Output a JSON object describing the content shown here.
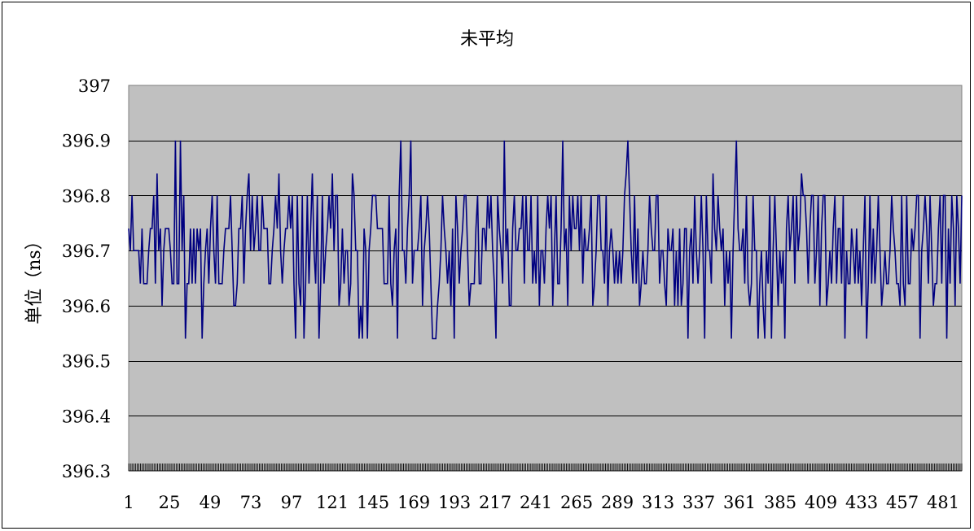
{
  "chart_data": {
    "type": "line",
    "title": "未平均",
    "xlabel": "",
    "ylabel": "单位（ns）",
    "ylim": [
      396.3,
      397
    ],
    "yticks": [
      "396.3",
      "396.4",
      "396.5",
      "396.6",
      "396.7",
      "396.8",
      "396.9",
      "397"
    ],
    "xticks": [
      "1",
      "25",
      "49",
      "73",
      "97",
      "121",
      "145",
      "169",
      "193",
      "217",
      "241",
      "265",
      "289",
      "313",
      "337",
      "361",
      "385",
      "409",
      "433",
      "457",
      "481"
    ],
    "x_range": [
      1,
      492
    ],
    "grid": true,
    "legend": "none",
    "colors": {
      "plot_background": "#c0c0c0",
      "line": "#000080",
      "gridline": "#000000"
    },
    "series": [
      {
        "values": [
          396.74,
          396.7,
          396.8,
          396.7,
          396.7,
          396.7,
          396.7,
          396.64,
          396.74,
          396.64,
          396.64,
          396.64,
          396.7,
          396.74,
          396.74,
          396.8,
          396.64,
          396.84,
          396.7,
          396.74,
          396.6,
          396.7,
          396.74,
          396.74,
          396.74,
          396.7,
          396.64,
          396.64,
          396.9,
          396.64,
          396.64,
          396.9,
          396.7,
          396.8,
          396.54,
          396.64,
          396.64,
          396.74,
          396.64,
          396.74,
          396.64,
          396.74,
          396.7,
          396.74,
          396.54,
          396.64,
          396.7,
          396.74,
          396.64,
          396.74,
          396.8,
          396.7,
          396.64,
          396.8,
          396.64,
          396.64,
          396.64,
          396.7,
          396.74,
          396.74,
          396.74,
          396.8,
          396.7,
          396.6,
          396.6,
          396.64,
          396.74,
          396.74,
          396.8,
          396.64,
          396.74,
          396.8,
          396.84,
          396.7,
          396.8,
          396.7,
          396.74,
          396.8,
          396.7,
          396.7,
          396.8,
          396.74,
          396.74,
          396.74,
          396.64,
          396.64,
          396.7,
          396.74,
          396.8,
          396.74,
          396.84,
          396.7,
          396.64,
          396.7,
          396.74,
          396.74,
          396.8,
          396.74,
          396.8,
          396.64,
          396.54,
          396.8,
          396.64,
          396.6,
          396.8,
          396.54,
          396.64,
          396.8,
          396.64,
          396.74,
          396.84,
          396.7,
          396.64,
          396.8,
          396.54,
          396.64,
          396.8,
          396.64,
          396.7,
          396.74,
          396.8,
          396.74,
          396.84,
          396.7,
          396.8,
          396.8,
          396.6,
          396.64,
          396.74,
          396.64,
          396.7,
          396.7,
          396.6,
          396.64,
          396.84,
          396.8,
          396.7,
          396.7,
          396.54,
          396.6,
          396.54,
          396.74,
          396.7,
          396.54,
          396.7,
          396.74,
          396.8,
          396.8,
          396.8,
          396.74,
          396.74,
          396.74,
          396.74,
          396.64,
          396.64,
          396.64,
          396.8,
          396.64,
          396.6,
          396.7,
          396.74,
          396.54,
          396.8,
          396.9,
          396.7,
          396.7,
          396.64,
          396.74,
          396.8,
          396.9,
          396.64,
          396.7,
          396.7,
          396.7,
          396.74,
          396.8,
          396.6,
          396.7,
          396.74,
          396.8,
          396.74,
          396.64,
          396.54,
          396.54,
          396.54,
          396.6,
          396.64,
          396.7,
          396.8,
          396.74,
          396.7,
          396.64,
          396.7,
          396.6,
          396.74,
          396.54,
          396.8,
          396.74,
          396.64,
          396.7,
          396.74,
          396.8,
          396.8,
          396.7,
          396.6,
          396.64,
          396.64,
          396.64,
          396.74,
          396.8,
          396.64,
          396.64,
          396.74,
          396.74,
          396.7,
          396.8,
          396.74,
          396.8,
          396.7,
          396.64,
          396.54,
          396.8,
          396.74,
          396.7,
          396.64,
          396.9,
          396.7,
          396.74,
          396.6,
          396.6,
          396.74,
          396.8,
          396.7,
          396.7,
          396.74,
          396.74,
          396.8,
          396.64,
          396.8,
          396.7,
          396.7,
          396.8,
          396.64,
          396.7,
          396.64,
          396.8,
          396.6,
          396.7,
          396.7,
          396.64,
          396.74,
          396.8,
          396.74,
          396.8,
          396.6,
          396.7,
          396.8,
          396.64,
          396.64,
          396.74,
          396.9,
          396.7,
          396.74,
          396.6,
          396.8,
          396.7,
          396.8,
          396.74,
          396.74,
          396.8,
          396.7,
          396.8,
          396.64,
          396.74,
          396.7,
          396.7,
          396.74,
          396.8,
          396.6,
          396.64,
          396.7,
          396.8,
          396.8,
          396.7,
          396.7,
          396.64,
          396.8,
          396.6,
          396.7,
          396.74,
          396.7,
          396.64,
          396.7,
          396.64,
          396.7,
          396.64,
          396.7,
          396.8,
          396.84,
          396.9,
          396.8,
          396.7,
          396.64,
          396.8,
          396.64,
          396.74,
          396.6,
          396.64,
          396.7,
          396.64,
          396.64,
          396.7,
          396.8,
          396.74,
          396.7,
          396.7,
          396.8,
          396.8,
          396.64,
          396.7,
          396.7,
          396.64,
          396.6,
          396.74,
          396.7,
          396.7,
          396.74,
          396.6,
          396.7,
          396.6,
          396.74,
          396.6,
          396.64,
          396.74,
          396.74,
          396.54,
          396.7,
          396.74,
          396.64,
          396.8,
          396.7,
          396.64,
          396.7,
          396.8,
          396.7,
          396.54,
          396.8,
          396.7,
          396.7,
          396.64,
          396.84,
          396.74,
          396.7,
          396.8,
          396.74,
          396.7,
          396.74,
          396.6,
          396.7,
          396.64,
          396.7,
          396.54,
          396.7,
          396.8,
          396.9,
          396.74,
          396.7,
          396.7,
          396.74,
          396.64,
          396.8,
          396.64,
          396.6,
          396.64,
          396.8,
          396.7,
          396.7,
          396.54,
          396.64,
          396.7,
          396.6,
          396.54,
          396.7,
          396.64,
          396.8,
          396.54,
          396.7,
          396.8,
          396.7,
          396.6,
          396.7,
          396.64,
          396.7,
          396.54,
          396.74,
          396.8,
          396.7,
          396.74,
          396.8,
          396.64,
          396.8,
          396.7,
          396.74,
          396.84,
          396.8,
          396.8,
          396.74,
          396.64,
          396.74,
          396.8,
          396.8,
          396.64,
          396.7,
          396.8,
          396.6,
          396.74,
          396.8,
          396.8,
          396.6,
          396.64,
          396.7,
          396.64,
          396.74,
          396.8,
          396.64,
          396.74,
          396.74,
          396.64,
          396.8,
          396.54,
          396.7,
          396.64,
          396.64,
          396.74,
          396.7,
          396.64,
          396.74,
          396.64,
          396.7,
          396.6,
          396.7,
          396.8,
          396.54,
          396.64,
          396.8,
          396.64,
          396.74,
          396.64,
          396.7,
          396.8,
          396.7,
          396.6,
          396.64,
          396.7,
          396.64,
          396.64,
          396.7,
          396.8,
          396.74,
          396.7,
          396.64,
          396.64,
          396.6,
          396.8,
          396.64,
          396.6,
          396.8,
          396.64,
          396.64,
          396.74,
          396.7,
          396.74,
          396.8,
          396.8,
          396.54,
          396.7,
          396.74,
          396.8,
          396.74,
          396.64,
          396.8,
          396.7,
          396.6,
          396.64,
          396.64,
          396.74,
          396.8,
          396.64,
          396.8,
          396.8,
          396.54,
          396.74,
          396.64,
          396.8,
          396.74,
          396.6,
          396.8,
          396.74,
          396.64,
          396.8
        ]
      }
    ]
  }
}
